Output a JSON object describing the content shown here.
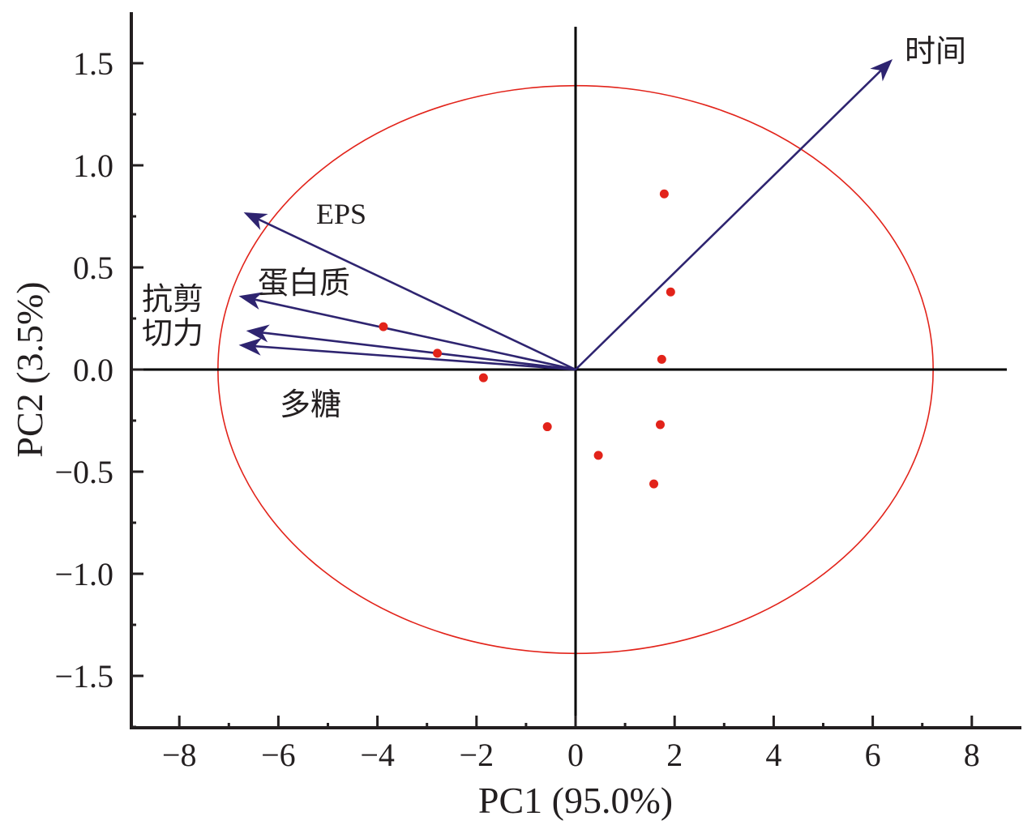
{
  "chart_data": {
    "type": "scatter",
    "subtype": "pca-biplot",
    "xlabel": "PC1 (95.0%)",
    "ylabel": "PC2 (3.5%)",
    "xlim": [
      -9,
      9
    ],
    "ylim": [
      -1.75,
      1.75
    ],
    "x_ticks": [
      -8,
      -6,
      -4,
      -2,
      0,
      2,
      4,
      6,
      8
    ],
    "x_tick_labels": [
      "−8",
      "−6",
      "−4",
      "−2",
      "0",
      "2",
      "4",
      "6",
      "8"
    ],
    "y_ticks": [
      -1.5,
      -1.0,
      -0.5,
      0.0,
      0.5,
      1.0,
      1.5
    ],
    "y_tick_labels": [
      "−1.5",
      "−1.0",
      "−0.5",
      "0.0",
      "0.5",
      "1.0",
      "1.5"
    ],
    "grid": false,
    "scores": {
      "color": "#e2231a",
      "points": [
        {
          "x": 1.79,
          "y": 0.86
        },
        {
          "x": 1.92,
          "y": 0.38
        },
        {
          "x": 1.74,
          "y": 0.05
        },
        {
          "x": 1.71,
          "y": -0.27
        },
        {
          "x": 0.46,
          "y": -0.42
        },
        {
          "x": 1.58,
          "y": -0.56
        },
        {
          "x": -0.57,
          "y": -0.28
        },
        {
          "x": -1.86,
          "y": -0.04
        },
        {
          "x": -2.79,
          "y": 0.08
        },
        {
          "x": -3.88,
          "y": 0.21
        }
      ]
    },
    "loadings": {
      "color": "#2e2470",
      "vectors": [
        {
          "name": "时间",
          "x": 6.4,
          "y": 1.52
        },
        {
          "name": "EPS",
          "x": -6.7,
          "y": 0.77
        },
        {
          "name": "蛋白质",
          "x": -6.8,
          "y": 0.36
        },
        {
          "name": "抗剪切力",
          "x": -6.65,
          "y": 0.19
        },
        {
          "name": "多糖",
          "x": -6.8,
          "y": 0.12
        }
      ]
    },
    "confidence_ellipse": {
      "color": "#e2231a",
      "rx": 7.22,
      "ry": 1.39
    }
  }
}
